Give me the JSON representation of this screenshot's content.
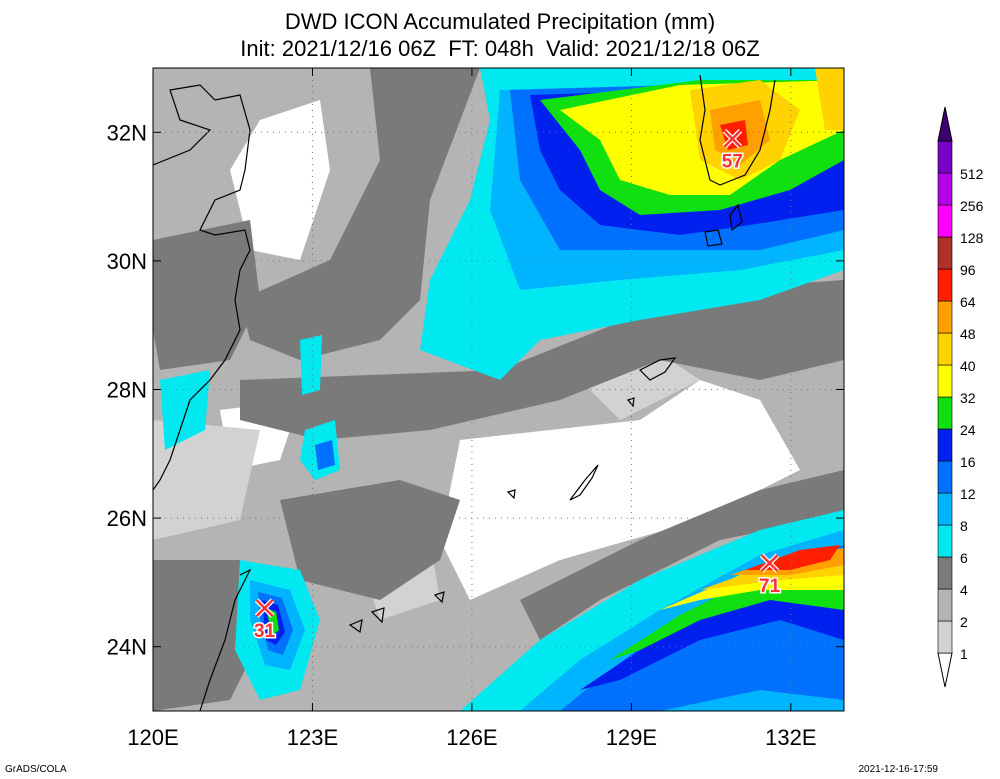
{
  "title": {
    "line1": "DWD ICON Accumulated Precipitation (mm)",
    "line2": "Init: 2021/12/16 06Z  FT: 048h  Valid: 2021/12/18 06Z"
  },
  "map": {
    "lon_range": [
      120,
      133
    ],
    "lat_range": [
      23,
      33
    ],
    "lon_ticks": [
      {
        "value": 120,
        "label": "120E"
      },
      {
        "value": 123,
        "label": "123E"
      },
      {
        "value": 126,
        "label": "126E"
      },
      {
        "value": 129,
        "label": "129E"
      },
      {
        "value": 132,
        "label": "132E"
      }
    ],
    "lat_ticks": [
      {
        "value": 24,
        "label": "24N"
      },
      {
        "value": 26,
        "label": "26N"
      },
      {
        "value": 28,
        "label": "28N"
      },
      {
        "value": 30,
        "label": "30N"
      },
      {
        "value": 32,
        "label": "32N"
      }
    ],
    "maxima": [
      {
        "lon": 122.1,
        "lat": 24.6,
        "label": "31"
      },
      {
        "lon": 130.9,
        "lat": 31.9,
        "label": "57"
      },
      {
        "lon": 131.6,
        "lat": 25.3,
        "label": "71"
      }
    ]
  },
  "colorbar": {
    "levels": [
      {
        "label": "1",
        "color": "#d2d2d2"
      },
      {
        "label": "2",
        "color": "#b4b4b4"
      },
      {
        "label": "4",
        "color": "#7a7a7a"
      },
      {
        "label": "6",
        "color": "#00e8f0"
      },
      {
        "label": "8",
        "color": "#00b4ff"
      },
      {
        "label": "12",
        "color": "#0070ff"
      },
      {
        "label": "16",
        "color": "#0020f0"
      },
      {
        "label": "24",
        "color": "#10e010"
      },
      {
        "label": "32",
        "color": "#ffff00"
      },
      {
        "label": "40",
        "color": "#ffd200"
      },
      {
        "label": "48",
        "color": "#ffa000"
      },
      {
        "label": "64",
        "color": "#ff1e00"
      },
      {
        "label": "96",
        "color": "#b03028"
      },
      {
        "label": "128",
        "color": "#ff00ff"
      },
      {
        "label": "256",
        "color": "#b400e6"
      },
      {
        "label": "512",
        "color": "#7800c8"
      }
    ],
    "top_arrow_color": "#3c006e"
  },
  "footer": {
    "left": "GrADS/COLA",
    "right": "2021-12-16-17:59"
  }
}
